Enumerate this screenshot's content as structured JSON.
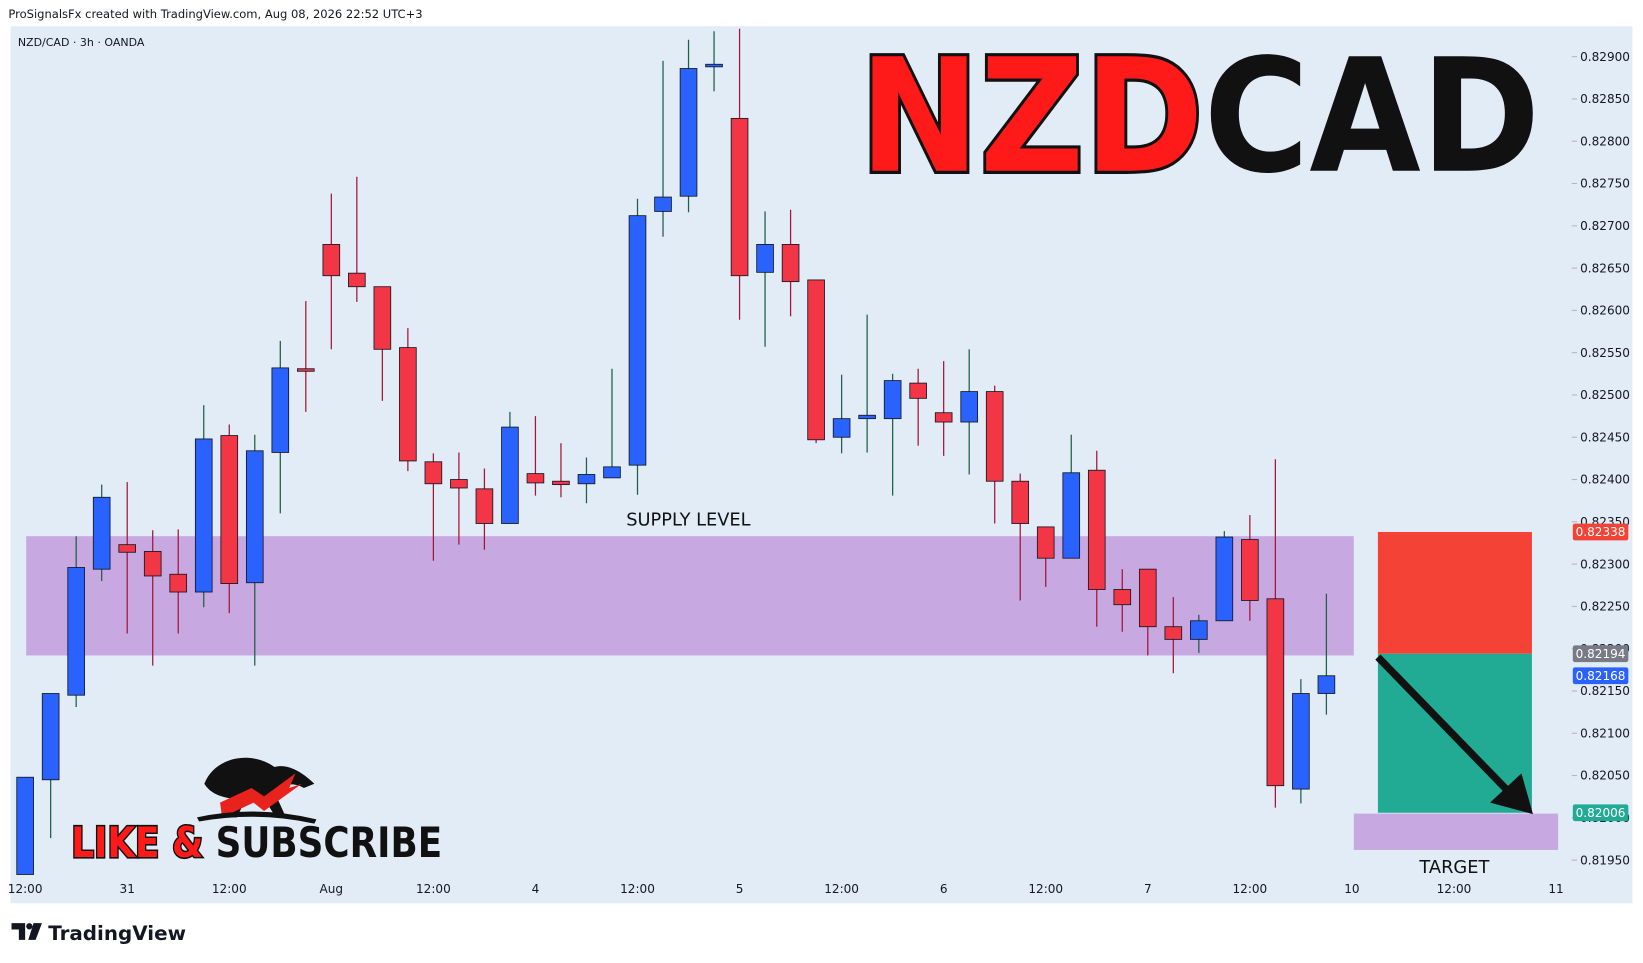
{
  "chart_data": {
    "type": "candlestick",
    "header": "ProSignalsFx created with TradingView.com, Aug 08, 2026 22:52 UTC+3",
    "subtitle": "NZD/CAD · 3h · OANDA",
    "title_parts": [
      "NZD",
      "CAD"
    ],
    "cta_parts": [
      "LIKE &",
      "SUBSCRIBE"
    ],
    "brand": "TradingView",
    "categories": [
      "12:00",
      null,
      null,
      null,
      "31",
      null,
      null,
      null,
      "12:00",
      null,
      null,
      null,
      "Aug",
      null,
      null,
      null,
      "12:00",
      null,
      null,
      null,
      "4",
      null,
      null,
      null,
      "12:00",
      null,
      null,
      null,
      "5",
      null,
      null,
      null,
      "12:00",
      null,
      null,
      null,
      "6",
      null,
      null,
      null,
      "12:00",
      null,
      null,
      null,
      "7",
      null,
      null,
      null,
      "12:00",
      null,
      null,
      null,
      "10",
      null,
      null,
      null,
      "12:00",
      null,
      null,
      null,
      "11"
    ],
    "series": {
      "up_color": "#2962ff",
      "down_color": "#f23645",
      "open": [
        0.81933,
        0.82045,
        0.82145,
        0.82294,
        0.82323,
        0.82315,
        0.82288,
        0.82267,
        0.82452,
        0.82278,
        0.82432,
        0.82531,
        0.82678,
        0.82644,
        0.82628,
        0.82556,
        0.82421,
        0.824,
        0.82389,
        0.82348,
        0.82407,
        0.82398,
        0.82395,
        0.82402,
        0.82417,
        0.82717,
        0.82735,
        0.82888,
        0.82827,
        0.82645,
        0.82678,
        0.82636,
        0.8245,
        0.82472,
        0.82472,
        0.82514,
        0.82479,
        0.82468,
        0.82504,
        0.82398,
        0.82344,
        0.82307,
        0.82411,
        0.8227,
        0.82294,
        0.82226,
        0.82211,
        0.82233,
        0.82329,
        0.82259,
        0.82034,
        0.82147,
        null,
        null,
        null,
        null,
        null,
        null,
        null,
        null,
        null
      ],
      "high": [
        0.82048,
        0.82147,
        0.82333,
        0.82394,
        0.82397,
        0.8234,
        0.82341,
        0.82488,
        0.82465,
        0.82453,
        0.82564,
        0.82611,
        0.82738,
        0.82758,
        0.82628,
        0.82579,
        0.82431,
        0.82432,
        0.82413,
        0.8248,
        0.82475,
        0.82443,
        0.82426,
        0.82531,
        0.82732,
        0.82895,
        0.8292,
        0.8293,
        0.82933,
        0.82717,
        0.82719,
        0.82636,
        0.82524,
        0.82595,
        0.82525,
        0.82531,
        0.8254,
        0.82554,
        0.82511,
        0.82407,
        0.82344,
        0.82453,
        0.82434,
        0.82294,
        0.82294,
        0.82261,
        0.8224,
        0.82339,
        0.82358,
        0.82424,
        0.82164,
        0.82265,
        null,
        null,
        null,
        null,
        null,
        null,
        null,
        null,
        null
      ],
      "low": [
        0.81933,
        0.81976,
        0.82131,
        0.8228,
        0.82218,
        0.8218,
        0.82218,
        0.82249,
        0.82242,
        0.8218,
        0.8236,
        0.8248,
        0.82554,
        0.8261,
        0.82493,
        0.8241,
        0.82304,
        0.82323,
        0.82317,
        0.82348,
        0.82381,
        0.82379,
        0.82372,
        0.82402,
        0.82382,
        0.82687,
        0.82716,
        0.82859,
        0.82589,
        0.82557,
        0.82593,
        0.82443,
        0.82431,
        0.82432,
        0.82381,
        0.8244,
        0.82428,
        0.82406,
        0.82348,
        0.82257,
        0.82273,
        0.82307,
        0.82226,
        0.8222,
        0.82192,
        0.82171,
        0.82195,
        0.82233,
        0.82233,
        0.82012,
        0.82017,
        0.82122,
        null,
        null,
        null,
        null,
        null,
        null,
        null,
        null,
        null
      ],
      "close": [
        0.82048,
        0.82147,
        0.82296,
        0.82379,
        0.82314,
        0.82286,
        0.82267,
        0.82448,
        0.82277,
        0.82434,
        0.82532,
        0.82528,
        0.82641,
        0.82628,
        0.82554,
        0.82422,
        0.82395,
        0.8239,
        0.82348,
        0.82462,
        0.82396,
        0.82394,
        0.82406,
        0.82415,
        0.82712,
        0.82734,
        0.82886,
        0.82891,
        0.82641,
        0.82678,
        0.82634,
        0.82447,
        0.82472,
        0.82476,
        0.82517,
        0.82496,
        0.82468,
        0.82504,
        0.82398,
        0.82348,
        0.82307,
        0.82408,
        0.8227,
        0.82252,
        0.82226,
        0.82211,
        0.82233,
        0.82332,
        0.82257,
        0.82038,
        0.82147,
        0.82168,
        null,
        null,
        null,
        null,
        null,
        null,
        null,
        null,
        null
      ]
    },
    "ylim": [
      0.81899,
      0.82936
    ],
    "yticks": [
      {
        "value": 0.8195,
        "label": "0.81950"
      },
      {
        "value": 0.82,
        "label": "0.82000"
      },
      {
        "value": 0.8205,
        "label": "0.82050"
      },
      {
        "value": 0.821,
        "label": "0.82100"
      },
      {
        "value": 0.8215,
        "label": "0.82150"
      },
      {
        "value": 0.822,
        "label": "0.82200"
      },
      {
        "value": 0.8225,
        "label": "0.82250"
      },
      {
        "value": 0.823,
        "label": "0.82300"
      },
      {
        "value": 0.8235,
        "label": "0.82350"
      },
      {
        "value": 0.824,
        "label": "0.82400"
      },
      {
        "value": 0.8245,
        "label": "0.82450"
      },
      {
        "value": 0.825,
        "label": "0.82500"
      },
      {
        "value": 0.8255,
        "label": "0.82550"
      },
      {
        "value": 0.826,
        "label": "0.82600"
      },
      {
        "value": 0.8265,
        "label": "0.82650"
      },
      {
        "value": 0.827,
        "label": "0.82700"
      },
      {
        "value": 0.8275,
        "label": "0.82750"
      },
      {
        "value": 0.828,
        "label": "0.82800"
      },
      {
        "value": 0.8285,
        "label": "0.82850"
      },
      {
        "value": 0.829,
        "label": "0.82900"
      }
    ],
    "supply_zone": {
      "label": "SUPPLY LEVEL",
      "top": 0.82333,
      "bottom": 0.82192,
      "color": "#c7a8e0"
    },
    "target_zone": {
      "label": "TARGET",
      "top": 0.82005,
      "bottom": 0.81962,
      "color": "#c7a8e0"
    },
    "position": {
      "stop": 0.82338,
      "entry": 0.82194,
      "target": 0.82006,
      "last": 0.82168,
      "stop_color": "#f44336",
      "target_color": "#22ab94",
      "entry_color": "#787b86",
      "last_color": "#2962ff"
    }
  }
}
